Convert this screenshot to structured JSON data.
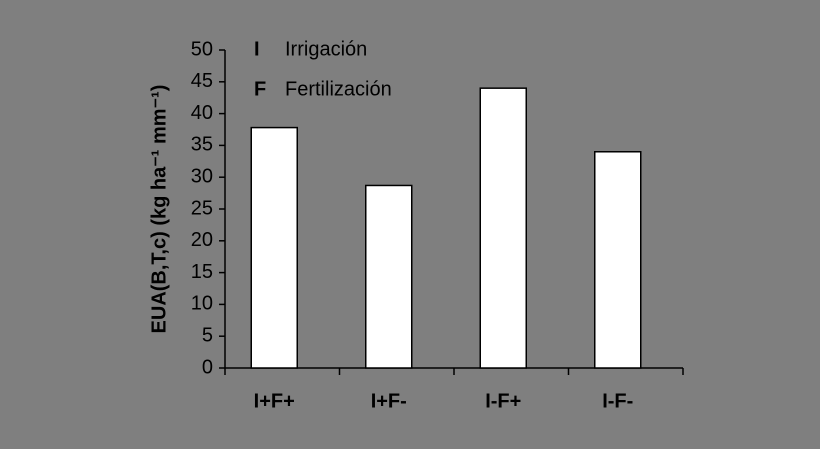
{
  "chart_data": {
    "type": "bar",
    "y_label": "EUA(B,T,c) (kg ha⁻¹ mm⁻¹)",
    "categories": [
      "I+F+",
      "I+F-",
      "I-F+",
      "I-F-"
    ],
    "values": [
      37.8,
      28.7,
      44,
      34
    ],
    "color": "#ffffff",
    "ylim": [
      0,
      50
    ],
    "yticks": [
      0,
      5,
      10,
      15,
      20,
      25,
      30,
      35,
      40,
      45,
      50
    ],
    "grid": false,
    "legend": [
      {
        "key": "I",
        "label": "Irrigación"
      },
      {
        "key": "F",
        "label": "Fertilización"
      }
    ]
  }
}
